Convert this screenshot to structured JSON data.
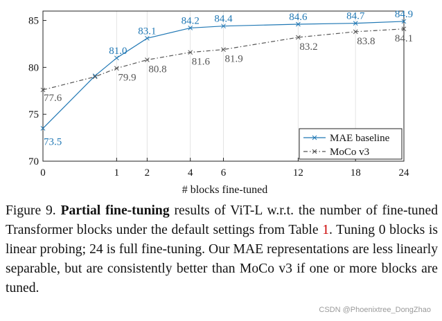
{
  "chart_data": {
    "type": "line",
    "title": "",
    "xlabel": "# blocks fine-tuned",
    "ylabel": "",
    "x_ticks": [
      0,
      1,
      2,
      4,
      6,
      12,
      18,
      24
    ],
    "y_ticks": [
      70,
      75,
      80,
      85
    ],
    "xlim": [
      0,
      24
    ],
    "ylim": [
      70,
      86
    ],
    "x_scale": "sqrt",
    "grid": "vertical",
    "legend_position": "lower-right",
    "series": [
      {
        "name": "MAE baseline",
        "color": "#1f77b4",
        "line_style": "solid",
        "marker": "x",
        "x": [
          0,
          0.5,
          1,
          2,
          4,
          6,
          12,
          18,
          24
        ],
        "values": [
          73.5,
          79.1,
          81.0,
          83.1,
          84.2,
          84.4,
          84.6,
          84.7,
          84.9
        ],
        "labels": [
          "73.5",
          "",
          "81.0",
          "83.1",
          "84.2",
          "84.4",
          "84.6",
          "84.7",
          "84.9"
        ]
      },
      {
        "name": "MoCo v3",
        "color": "#555555",
        "line_style": "dashdot",
        "marker": "x",
        "x": [
          0,
          0.5,
          1,
          2,
          4,
          6,
          12,
          18,
          24
        ],
        "values": [
          77.6,
          79.0,
          79.9,
          80.8,
          81.6,
          81.9,
          83.2,
          83.8,
          84.1
        ],
        "labels": [
          "77.6",
          "",
          "79.9",
          "80.8",
          "81.6",
          "81.9",
          "83.2",
          "83.8",
          "84.1"
        ]
      }
    ]
  },
  "caption": {
    "prefix": "Figure 9.  ",
    "bold": "Partial fine-tuning",
    "part1": " results of ViT-L w.r.t. the number of fine-tuned Transformer blocks under the default settings from Table ",
    "ref": "1",
    "part2": ". Tuning 0 blocks is linear probing; 24 is full fine-tuning. Our MAE representations are less linearly separable, but are consistently better than MoCo v3 if one or more blocks are tuned."
  },
  "watermark": "CSDN @Phoenixtree_DongZhao"
}
